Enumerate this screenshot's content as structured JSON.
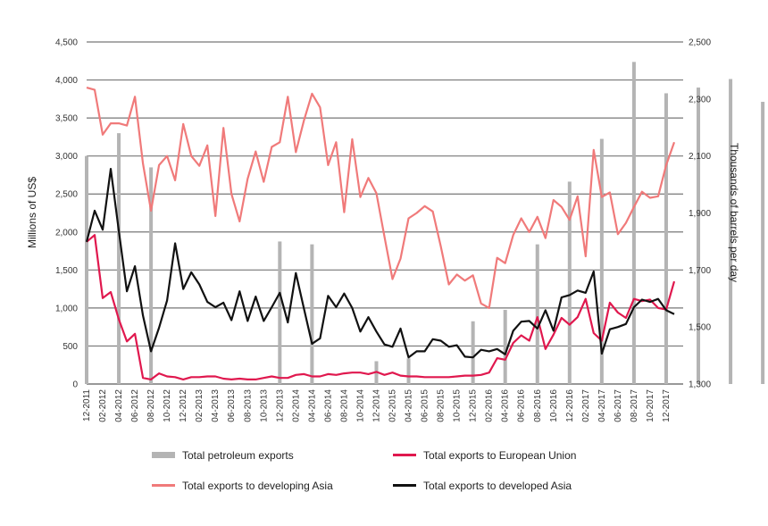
{
  "chart_data": {
    "type": "line",
    "title": "",
    "ylabel_left": "Millions of US$",
    "ylabel_right": "Thousands of barrels per day",
    "y_left_lim": [
      0,
      4500
    ],
    "y_left_ticks": [
      "0",
      "500",
      "1,000",
      "1,500",
      "2,000",
      "2,500",
      "3,000",
      "3,500",
      "4,000",
      "4,500"
    ],
    "y_right_lim": [
      1300,
      2500
    ],
    "y_right_ticks": [
      "1,300",
      "1,500",
      "1,700",
      "1,900",
      "2,100",
      "2,300",
      "2,500"
    ],
    "x_tick_labels": [
      "12-2011",
      "02-2012",
      "04-2012",
      "06-2012",
      "08-2012",
      "10-2012",
      "12-2012",
      "02-2013",
      "04-2013",
      "06-2013",
      "08-2013",
      "10-2013",
      "12-2013",
      "02-2014",
      "04-2014",
      "06-2014",
      "08-2014",
      "10-2014",
      "12-2014",
      "02-2015",
      "04-2015",
      "06-2015",
      "08-2015",
      "10-2015",
      "12-2015",
      "02-2016",
      "04-2016",
      "06-2016",
      "08-2016",
      "10-2016",
      "12-2016",
      "02-2017",
      "04-2017",
      "06-2017",
      "08-2017",
      "10-2017",
      "12-2017"
    ],
    "legend": [
      {
        "name": "Total petroleum exports",
        "color": "#b4b4b4",
        "kind": "bar"
      },
      {
        "name": "Total exports to European Union",
        "color": "#e0184e",
        "kind": "line"
      },
      {
        "name": "Total exports to developing Asia",
        "color": "#f07a7a",
        "kind": "line"
      },
      {
        "name": "Total exports to developed Asia",
        "color": "#111111",
        "kind": "line"
      }
    ],
    "bars": {
      "name": "Total petroleum exports",
      "axis": "right",
      "points": [
        {
          "index": 0,
          "value": 2100
        },
        {
          "index": 4,
          "value": 2180
        },
        {
          "index": 8,
          "value": 2060
        },
        {
          "index": 24,
          "value": 1800
        },
        {
          "index": 28,
          "value": 1790
        },
        {
          "index": 36,
          "value": 1380
        },
        {
          "index": 40,
          "value": 1390
        },
        {
          "index": 48,
          "value": 1520
        },
        {
          "index": 52,
          "value": 1560
        },
        {
          "index": 56,
          "value": 1790
        },
        {
          "index": 60,
          "value": 2010
        },
        {
          "index": 64,
          "value": 2160
        },
        {
          "index": 68,
          "value": 2430
        },
        {
          "index": 72,
          "value": 2320
        },
        {
          "index": 76,
          "value": 2340
        },
        {
          "index": 80,
          "value": 2370
        },
        {
          "index": 84,
          "value": 2290
        }
      ]
    },
    "series": [
      {
        "name": "Total exports to developing Asia",
        "axis": "left",
        "color": "#f07a7a",
        "values": [
          3900,
          3870,
          3280,
          3430,
          3430,
          3400,
          3780,
          2900,
          2280,
          2880,
          3000,
          2680,
          3420,
          3000,
          2870,
          3140,
          2210,
          3370,
          2500,
          2140,
          2700,
          3060,
          2660,
          3120,
          3180,
          3780,
          3050,
          3470,
          3820,
          3640,
          2880,
          3180,
          2260,
          3220,
          2460,
          2710,
          2510,
          1940,
          1380,
          1650,
          2180,
          2250,
          2340,
          2270,
          1810,
          1310,
          1440,
          1360,
          1430,
          1060,
          1000,
          1660,
          1590,
          1960,
          2180,
          2000,
          2200,
          1920,
          2420,
          2330,
          2160,
          2470,
          1680,
          3080,
          2460,
          2520,
          1970,
          2120,
          2330,
          2530,
          2450,
          2470,
          2880,
          3180
        ]
      },
      {
        "name": "Total exports to European Union",
        "axis": "left",
        "color": "#e0184e",
        "values": [
          1870,
          1960,
          1130,
          1210,
          850,
          560,
          660,
          80,
          60,
          140,
          100,
          90,
          60,
          90,
          90,
          100,
          100,
          70,
          60,
          70,
          60,
          60,
          80,
          100,
          80,
          80,
          120,
          130,
          100,
          100,
          130,
          120,
          140,
          150,
          150,
          130,
          160,
          120,
          150,
          110,
          100,
          100,
          90,
          90,
          90,
          90,
          100,
          110,
          110,
          120,
          150,
          340,
          320,
          540,
          640,
          570,
          880,
          460,
          650,
          870,
          780,
          880,
          1120,
          670,
          570,
          1070,
          940,
          870,
          1120,
          1090,
          1110,
          1000,
          980,
          1350
        ]
      },
      {
        "name": "Total exports to developed Asia",
        "axis": "left",
        "color": "#111111",
        "values": [
          1870,
          2280,
          2030,
          2830,
          2010,
          1220,
          1550,
          900,
          430,
          740,
          1100,
          1850,
          1250,
          1470,
          1310,
          1080,
          1010,
          1070,
          840,
          1220,
          830,
          1150,
          830,
          1010,
          1200,
          810,
          1460,
          990,
          530,
          600,
          1160,
          1010,
          1190,
          1000,
          690,
          880,
          690,
          520,
          490,
          730,
          350,
          430,
          430,
          590,
          570,
          490,
          510,
          360,
          350,
          450,
          430,
          460,
          390,
          700,
          820,
          830,
          730,
          970,
          700,
          1140,
          1170,
          1230,
          1200,
          1480,
          400,
          720,
          750,
          790,
          1010,
          1110,
          1080,
          1120,
          970,
          920
        ]
      }
    ]
  }
}
